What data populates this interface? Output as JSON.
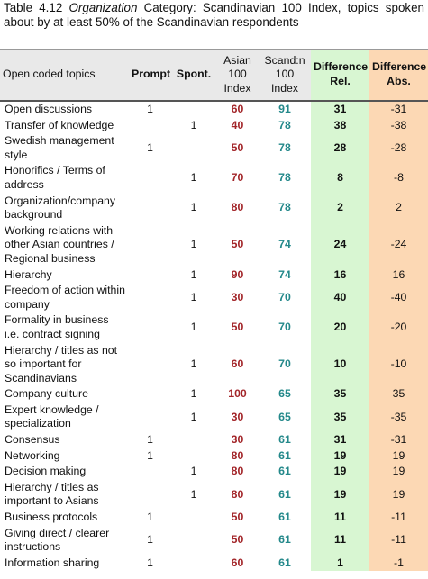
{
  "caption": {
    "label": "Table 4.12",
    "emphasis": "Organization",
    "text": "Category: Scandinavian 100 Index, topics spoken about by at least 50% of the Scandinavian respondents"
  },
  "table": {
    "headers": [
      "Open coded topics",
      "Prompt",
      "Spont.",
      "Asian 100 Index",
      "Scand:n 100 Index",
      "Difference Rel.",
      "Difference Abs."
    ],
    "rows": [
      [
        "Open discussions",
        1,
        null,
        60,
        91,
        31,
        -31
      ],
      [
        "Transfer of knowledge",
        null,
        1,
        40,
        78,
        38,
        -38
      ],
      [
        "Swedish management style",
        1,
        null,
        50,
        78,
        28,
        -28
      ],
      [
        "Honorifics / Terms of address",
        null,
        1,
        70,
        78,
        8,
        -8
      ],
      [
        "Organization/company background",
        null,
        1,
        80,
        78,
        2,
        2
      ],
      [
        "Working relations with other Asian countries / Regional business",
        null,
        1,
        50,
        74,
        24,
        -24
      ],
      [
        "Hierarchy",
        null,
        1,
        90,
        74,
        16,
        16
      ],
      [
        "Freedom of action within company",
        null,
        1,
        30,
        70,
        40,
        -40
      ],
      [
        "Formality in business i.e. contract signing",
        null,
        1,
        50,
        70,
        20,
        -20
      ],
      [
        "Hierarchy / titles as not so important for Scandinavians",
        null,
        1,
        60,
        70,
        10,
        -10
      ],
      [
        "Company culture",
        null,
        1,
        100,
        65,
        35,
        35
      ],
      [
        "Expert knowledge / specialization",
        null,
        1,
        30,
        65,
        35,
        -35
      ],
      [
        "Consensus",
        1,
        null,
        30,
        61,
        31,
        -31
      ],
      [
        "Networking",
        1,
        null,
        80,
        61,
        19,
        19
      ],
      [
        "Decision making",
        null,
        1,
        80,
        61,
        19,
        19
      ],
      [
        "Hierarchy / titles as important to Asians",
        null,
        1,
        80,
        61,
        19,
        19
      ],
      [
        "Business protocols",
        1,
        null,
        50,
        61,
        11,
        -11
      ],
      [
        "Giving direct / clearer instructions",
        1,
        null,
        50,
        61,
        11,
        -11
      ],
      [
        "Information sharing",
        1,
        null,
        60,
        61,
        1,
        -1
      ]
    ]
  }
}
